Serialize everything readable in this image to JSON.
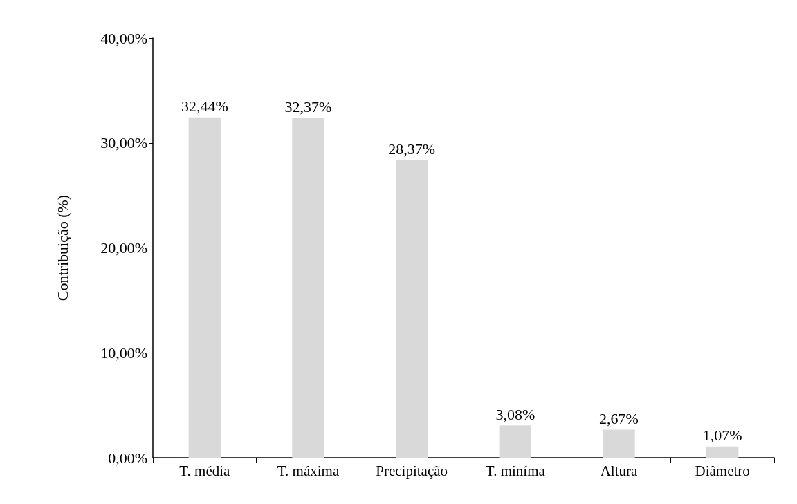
{
  "chart_data": {
    "type": "bar",
    "ylabel": "Contribuição (%)",
    "categories": [
      "T. média",
      "T. máxima",
      "Precipitação",
      "T. miníma",
      "Altura",
      "Diâmetro"
    ],
    "values": [
      32.44,
      32.37,
      28.37,
      3.08,
      2.67,
      1.07
    ],
    "value_labels": [
      "32,44%",
      "32,37%",
      "28,37%",
      "3,08%",
      "2,67%",
      "1,07%"
    ],
    "color": "#d9d9d9",
    "ylim": [
      0,
      40
    ],
    "yticks": [
      {
        "value": 0,
        "label": "0,00%"
      },
      {
        "value": 10,
        "label": "10,00%"
      },
      {
        "value": 20,
        "label": "20,00%"
      },
      {
        "value": 30,
        "label": "30,00%"
      },
      {
        "value": 40,
        "label": "40,00%"
      }
    ],
    "grid": false
  }
}
